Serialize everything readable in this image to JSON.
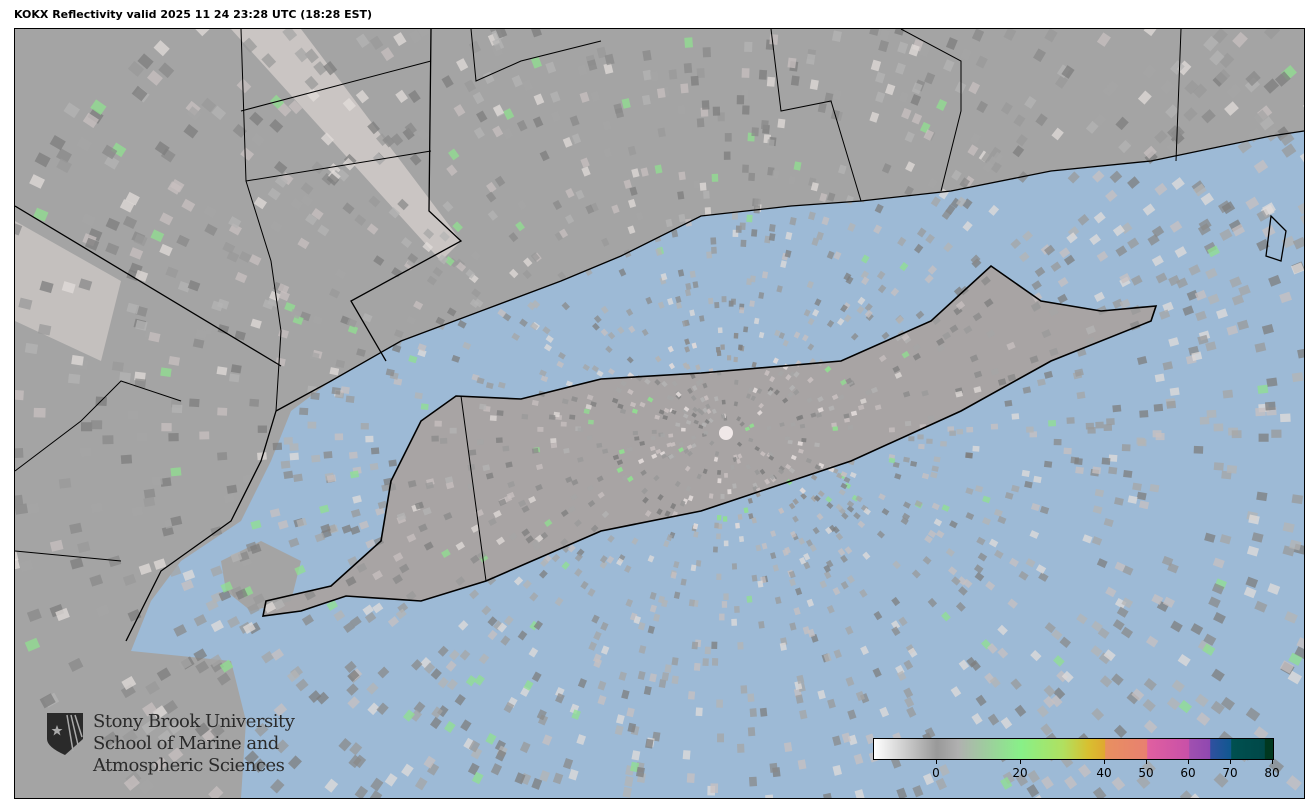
{
  "title": "KOKX Reflectivity valid 2025 11 24 23:28 UTC (18:28 EST)",
  "map": {
    "radar_site": "KOKX",
    "colors": {
      "water": "#9dbad6",
      "land": "#9a9a9a",
      "terrain": "#e4dcd8",
      "coast": "#000000"
    }
  },
  "logo": {
    "line1": "Stony Brook University",
    "line2": "School of Marine and",
    "line3": "Atmospheric Sciences"
  },
  "colorbar": {
    "range": [
      -15,
      80
    ],
    "ticks": [
      "0",
      "20",
      "40",
      "50",
      "60",
      "70",
      "80"
    ],
    "tick_values": [
      0,
      20,
      40,
      50,
      60,
      70,
      80
    ],
    "stops": [
      {
        "v": -15,
        "c": "#ffffff"
      },
      {
        "v": 0,
        "c": "#999999"
      },
      {
        "v": 5,
        "c": "#b0b0b0"
      },
      {
        "v": 20,
        "c": "#88f088"
      },
      {
        "v": 30,
        "c": "#b0e060"
      },
      {
        "v": 36,
        "c": "#d8c030"
      },
      {
        "v": 40,
        "c": "#e0a830"
      },
      {
        "v": 40.1,
        "c": "#e89060"
      },
      {
        "v": 50,
        "c": "#e88070"
      },
      {
        "v": 50.1,
        "c": "#e060a0"
      },
      {
        "v": 60,
        "c": "#c850a8"
      },
      {
        "v": 60.1,
        "c": "#a050b0"
      },
      {
        "v": 65,
        "c": "#9048b0"
      },
      {
        "v": 65.1,
        "c": "#3050a0"
      },
      {
        "v": 70,
        "c": "#105890"
      },
      {
        "v": 70.1,
        "c": "#005050"
      },
      {
        "v": 78,
        "c": "#004848"
      },
      {
        "v": 78.1,
        "c": "#003820"
      },
      {
        "v": 80,
        "c": "#003820"
      }
    ]
  }
}
